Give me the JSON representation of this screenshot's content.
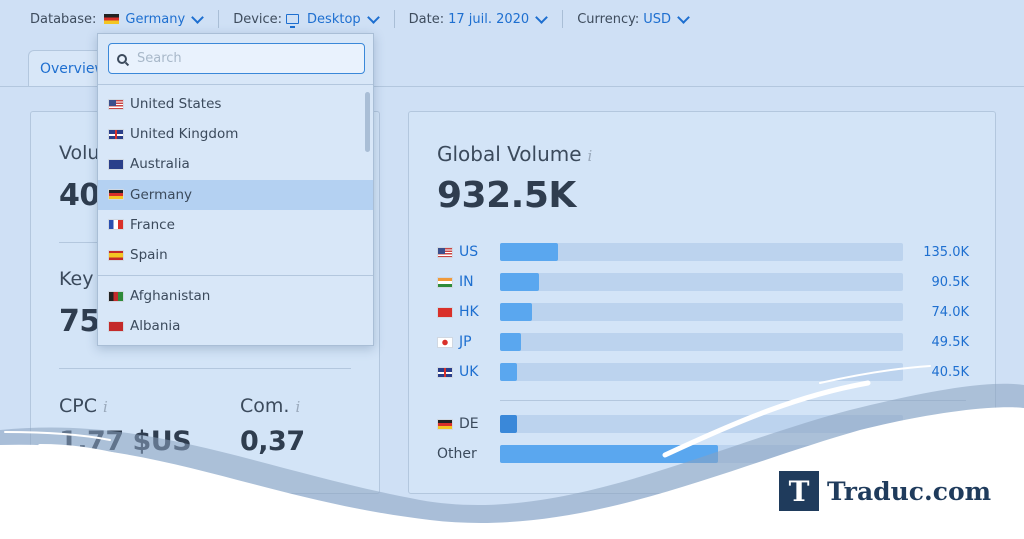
{
  "filters": {
    "database_label": "Database:",
    "database_value": "Germany",
    "device_label": "Device:",
    "device_value": "Desktop",
    "date_label": "Date:",
    "date_value": "17 juil. 2020",
    "currency_label": "Currency:",
    "currency_value": "USD"
  },
  "tabs": [
    {
      "label": "Overview"
    }
  ],
  "left_card": {
    "volume_label": "Volu",
    "volume_value": "40",
    "keyword_label": "Key",
    "keyword_value": "75",
    "cpc_label": "CPC",
    "cpc_value": "1,77 $US",
    "com_label": "Com.",
    "com_value": "0,37",
    "info_glyph": "i"
  },
  "global_volume": {
    "title": "Global Volume",
    "info_glyph": "i",
    "value": "932.5K",
    "rows": [
      {
        "code": "US",
        "flag": "flag-us",
        "value": "135.0K",
        "share": 0.145
      },
      {
        "code": "IN",
        "flag": "flag-in",
        "value": "90.5K",
        "share": 0.097
      },
      {
        "code": "HK",
        "flag": "flag-hk",
        "value": "74.0K",
        "share": 0.079
      },
      {
        "code": "JP",
        "flag": "flag-jp",
        "value": "49.5K",
        "share": 0.053
      },
      {
        "code": "UK",
        "flag": "flag-uk",
        "value": "40.5K",
        "share": 0.043
      }
    ],
    "de_row": {
      "code": "DE",
      "flag": "flag-de",
      "share": 0.043
    },
    "other_row": {
      "code": "Other",
      "share": 0.54
    }
  },
  "dropdown": {
    "search_placeholder": "Search",
    "items": [
      {
        "label": "United States",
        "flag": "flag-us"
      },
      {
        "label": "United Kingdom",
        "flag": "flag-uk"
      },
      {
        "label": "Australia",
        "flag": "flag-au"
      },
      {
        "label": "Germany",
        "flag": "flag-de",
        "selected": true
      },
      {
        "label": "France",
        "flag": "flag-fr"
      },
      {
        "label": "Spain",
        "flag": "flag-es"
      },
      {
        "label": "Afghanistan",
        "flag": "flag-af"
      },
      {
        "label": "Albania",
        "flag": "flag-al"
      }
    ]
  },
  "logo": {
    "letter": "T",
    "text": "Traduc.com"
  },
  "colors": {
    "accent": "#1e6fd0",
    "bar": "#5aa7ef",
    "bar_dark": "#3a88d9",
    "track": "#bcd3ee",
    "logo": "#1f3b5c"
  }
}
